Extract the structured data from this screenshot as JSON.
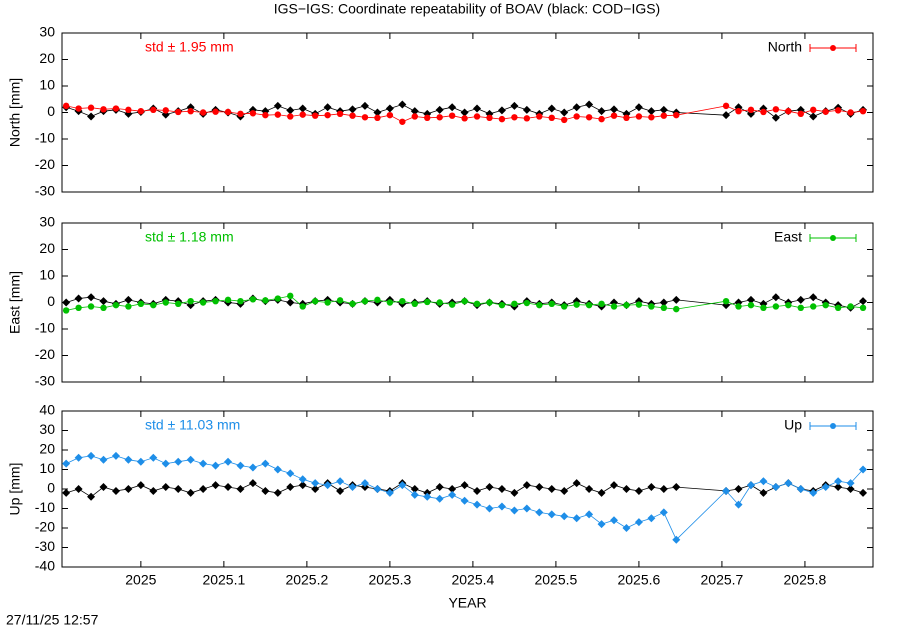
{
  "title": "IGS−IGS: Coordinate repeatability of BOAV (black: COD−IGS)",
  "timestamp": "27/11/25 12:57",
  "chart_data": [
    {
      "type": "line",
      "ylabel": "North [mm]",
      "annotation": "std ± 1.95 mm",
      "legend_position": "top-right",
      "xlim": [
        2024.905,
        2025.882
      ],
      "xticks": [
        2025,
        2025.1,
        2025.2,
        2025.3,
        2025.4,
        2025.5,
        2025.6,
        2025.7,
        2025.8
      ],
      "ylim": [
        -30,
        30
      ],
      "yticks": [
        -30,
        -20,
        -10,
        0,
        10,
        20,
        30
      ],
      "x": [
        2024.91,
        2024.925,
        2024.94,
        2024.955,
        2024.97,
        2024.985,
        2025,
        2025.015,
        2025.03,
        2025.045,
        2025.06,
        2025.075,
        2025.09,
        2025.105,
        2025.12,
        2025.135,
        2025.15,
        2025.165,
        2025.18,
        2025.195,
        2025.21,
        2025.225,
        2025.24,
        2025.255,
        2025.27,
        2025.285,
        2025.3,
        2025.315,
        2025.33,
        2025.345,
        2025.36,
        2025.375,
        2025.39,
        2025.405,
        2025.42,
        2025.435,
        2025.45,
        2025.465,
        2025.48,
        2025.495,
        2025.51,
        2025.525,
        2025.54,
        2025.555,
        2025.57,
        2025.585,
        2025.6,
        2025.615,
        2025.63,
        2025.645,
        2025.705,
        2025.72,
        2025.735,
        2025.75,
        2025.765,
        2025.78,
        2025.795,
        2025.81,
        2025.825,
        2025.84,
        2025.855,
        2025.87
      ],
      "series": [
        {
          "name": "North",
          "color": "#ff0000",
          "values": [
            2.5,
            1.5,
            1.8,
            1.2,
            1.5,
            1.0,
            0.5,
            1.0,
            0.8,
            0.2,
            0.5,
            0.0,
            0.3,
            0.2,
            -0.5,
            -0.3,
            -1.0,
            -0.8,
            -1.5,
            -0.8,
            -1.2,
            -1.0,
            -0.5,
            -1.2,
            -1.8,
            -2.0,
            -1.0,
            -3.5,
            -1.5,
            -2.0,
            -1.8,
            -1.2,
            -2.2,
            -1.5,
            -2.0,
            -2.5,
            -1.8,
            -2.2,
            -1.5,
            -2.0,
            -2.8,
            -1.5,
            -1.8,
            -2.5,
            -1.2,
            -2.0,
            -1.5,
            -1.8,
            -1.2,
            -1.0,
            2.5,
            0.5,
            1.0,
            0.2,
            1.2,
            0.5,
            -0.5,
            1.0,
            0.3,
            0.8,
            0.0,
            0.5
          ]
        },
        {
          "color": "#000000",
          "values": [
            2,
            0.5,
            -1.5,
            0.5,
            1,
            -0.5,
            0.2,
            1.5,
            -0.8,
            0.5,
            2,
            -0.5,
            1,
            0,
            -1.5,
            1,
            0.5,
            2.5,
            0.8,
            1.5,
            -0.5,
            2,
            0.5,
            1.2,
            2.5,
            0,
            1.5,
            3,
            0.5,
            -0.5,
            1,
            2,
            0,
            1.5,
            -0.5,
            0.8,
            2.5,
            1,
            -0.5,
            1.5,
            0,
            2,
            3,
            0.5,
            1.2,
            -0.5,
            2,
            0.5,
            1,
            0,
            -1,
            2,
            -0.5,
            1.5,
            -2,
            0.5,
            1,
            -1.5,
            0.5,
            1.8,
            -0.5,
            1
          ]
        }
      ]
    },
    {
      "type": "line",
      "ylabel": "East [mm]",
      "annotation": "std ± 1.18 mm",
      "legend_position": "top-right",
      "xlim": [
        2024.905,
        2025.882
      ],
      "xticks": [
        2025,
        2025.1,
        2025.2,
        2025.3,
        2025.4,
        2025.5,
        2025.6,
        2025.7,
        2025.8
      ],
      "ylim": [
        -30,
        30
      ],
      "yticks": [
        -30,
        -20,
        -10,
        0,
        10,
        20,
        30
      ],
      "x": [
        2024.91,
        2024.925,
        2024.94,
        2024.955,
        2024.97,
        2024.985,
        2025,
        2025.015,
        2025.03,
        2025.045,
        2025.06,
        2025.075,
        2025.09,
        2025.105,
        2025.12,
        2025.135,
        2025.15,
        2025.165,
        2025.18,
        2025.195,
        2025.21,
        2025.225,
        2025.24,
        2025.255,
        2025.27,
        2025.285,
        2025.3,
        2025.315,
        2025.33,
        2025.345,
        2025.36,
        2025.375,
        2025.39,
        2025.405,
        2025.42,
        2025.435,
        2025.45,
        2025.465,
        2025.48,
        2025.495,
        2025.51,
        2025.525,
        2025.54,
        2025.555,
        2025.57,
        2025.585,
        2025.6,
        2025.615,
        2025.63,
        2025.645,
        2025.705,
        2025.72,
        2025.735,
        2025.75,
        2025.765,
        2025.78,
        2025.795,
        2025.81,
        2025.825,
        2025.84,
        2025.855,
        2025.87
      ],
      "series": [
        {
          "name": "East",
          "color": "#00c000",
          "values": [
            -3,
            -2,
            -1.5,
            -2,
            -1,
            -1.5,
            -0.5,
            -1,
            0,
            -0.5,
            0.5,
            0,
            0.5,
            1,
            0.5,
            1.2,
            0.8,
            1.5,
            2.5,
            -1.5,
            0.5,
            0,
            0.8,
            -0.5,
            0.5,
            1,
            0,
            0.5,
            -0.5,
            0.2,
            0,
            -0.8,
            0.5,
            -0.5,
            0,
            -1,
            -0.5,
            -0.2,
            -1,
            -0.5,
            -1.5,
            -0.8,
            -1,
            -0.5,
            -1.5,
            -1,
            -0.8,
            -1.5,
            -2,
            -2.5,
            0.5,
            -1.5,
            -1,
            -2,
            -1.5,
            -1,
            -2,
            -1.5,
            -1,
            -2,
            -1.5,
            -2
          ]
        },
        {
          "color": "#000000",
          "values": [
            0,
            1.5,
            2,
            0.5,
            -0.5,
            1,
            0,
            -0.5,
            1,
            0.5,
            -1,
            0.5,
            1,
            0,
            -0.5,
            1.5,
            0.5,
            1,
            0,
            -0.5,
            0.5,
            1,
            0,
            -0.5,
            0.5,
            0,
            1,
            -0.5,
            0,
            0.5,
            -0.5,
            0,
            0.5,
            -1,
            0,
            -0.5,
            -1.5,
            0.5,
            -0.5,
            0,
            -1,
            0.5,
            -0.5,
            -1.5,
            0,
            -1,
            0.5,
            -0.5,
            0,
            1,
            -1,
            0,
            1,
            -0.5,
            2,
            0,
            1,
            2,
            0,
            -1,
            -2,
            0.5
          ]
        }
      ]
    },
    {
      "type": "line",
      "ylabel": "Up [mm]",
      "xlabel": "YEAR",
      "annotation": "std ± 11.03 mm",
      "legend_position": "top-right",
      "xlim": [
        2024.905,
        2025.882
      ],
      "xticks": [
        2025,
        2025.1,
        2025.2,
        2025.3,
        2025.4,
        2025.5,
        2025.6,
        2025.7,
        2025.8
      ],
      "ylim": [
        -40,
        40
      ],
      "yticks": [
        -40,
        -30,
        -20,
        -10,
        0,
        10,
        20,
        30,
        40
      ],
      "x": [
        2024.91,
        2024.925,
        2024.94,
        2024.955,
        2024.97,
        2024.985,
        2025,
        2025.015,
        2025.03,
        2025.045,
        2025.06,
        2025.075,
        2025.09,
        2025.105,
        2025.12,
        2025.135,
        2025.15,
        2025.165,
        2025.18,
        2025.195,
        2025.21,
        2025.225,
        2025.24,
        2025.255,
        2025.27,
        2025.285,
        2025.3,
        2025.315,
        2025.33,
        2025.345,
        2025.36,
        2025.375,
        2025.39,
        2025.405,
        2025.42,
        2025.435,
        2025.45,
        2025.465,
        2025.48,
        2025.495,
        2025.51,
        2025.525,
        2025.54,
        2025.555,
        2025.57,
        2025.585,
        2025.6,
        2025.615,
        2025.63,
        2025.645,
        2025.705,
        2025.72,
        2025.735,
        2025.75,
        2025.765,
        2025.78,
        2025.795,
        2025.81,
        2025.825,
        2025.84,
        2025.855,
        2025.87
      ],
      "series": [
        {
          "name": "Up",
          "color": "#1e8ee8",
          "values": [
            13,
            16,
            17,
            15,
            17,
            15,
            14,
            16,
            13,
            14,
            15,
            13,
            12,
            14,
            12,
            11,
            13,
            10,
            8,
            5,
            3,
            2,
            4,
            1,
            3,
            0,
            -2,
            2,
            -3,
            -4,
            -5,
            -3,
            -6,
            -8,
            -10,
            -9,
            -11,
            -10,
            -12,
            -13,
            -14,
            -15,
            -13,
            -18,
            -16,
            -20,
            -17,
            -15,
            -12,
            -26,
            -1,
            -8,
            2,
            4,
            1,
            3,
            0,
            -2,
            1,
            4,
            3,
            10
          ]
        },
        {
          "color": "#000000",
          "values": [
            -2,
            0,
            -4,
            1,
            -1,
            0,
            2,
            -1,
            1,
            0,
            -2,
            0,
            2,
            1,
            0,
            3,
            -1,
            -2,
            1,
            2,
            0,
            3,
            -1,
            2,
            1,
            0,
            -1,
            3,
            0,
            -2,
            1,
            0,
            2,
            -1,
            1,
            0,
            -2,
            2,
            1,
            0,
            -1,
            3,
            0,
            -2,
            2,
            0,
            -1,
            1,
            0,
            1,
            -1,
            0,
            2,
            -2,
            1,
            3,
            0,
            -1,
            2,
            1,
            0,
            -2
          ]
        }
      ]
    }
  ]
}
